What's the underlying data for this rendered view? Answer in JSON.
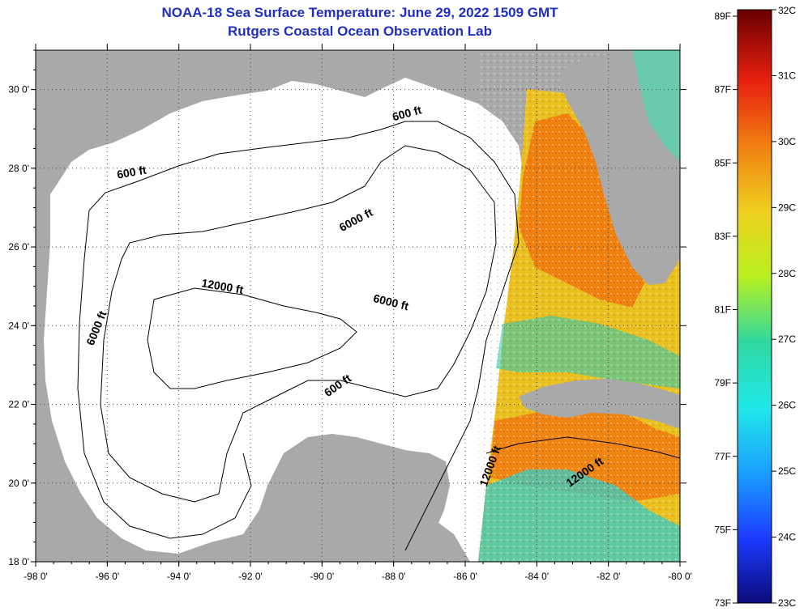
{
  "title": {
    "line1": "NOAA-18 Sea Surface Temperature:  June 29, 2022 1509 GMT",
    "line2": "Rutgers Coastal Ocean Observation Lab"
  },
  "map": {
    "lon_range": [
      -98,
      -80
    ],
    "lat_range": [
      18,
      31
    ],
    "x_ticks": [
      "-98 0'",
      "-96 0'",
      "-94 0'",
      "-92 0'",
      "-90 0'",
      "-88 0'",
      "-86 0'",
      "-84 0'",
      "-82 0'",
      "-80 0'"
    ],
    "y_ticks": [
      "30 0'",
      "28 0'",
      "26 0'",
      "24 0'",
      "22 0'",
      "20 0'",
      "18 0'"
    ],
    "contour_labels": [
      {
        "text": "600 ft",
        "lon": -95.3,
        "lat": 27.8,
        "rot": -10
      },
      {
        "text": "600 ft",
        "lon": -87.6,
        "lat": 29.3,
        "rot": -15
      },
      {
        "text": "6000 ft",
        "lon": -89.0,
        "lat": 26.6,
        "rot": -28
      },
      {
        "text": "12000 ft",
        "lon": -92.8,
        "lat": 24.9,
        "rot": 10
      },
      {
        "text": "6000 ft",
        "lon": -88.1,
        "lat": 24.5,
        "rot": 14
      },
      {
        "text": "6000 ft",
        "lon": -96.2,
        "lat": 23.9,
        "rot": -68
      },
      {
        "text": "600 ft",
        "lon": -89.5,
        "lat": 22.4,
        "rot": -35
      },
      {
        "text": "12000 ft",
        "lon": -85.2,
        "lat": 20.4,
        "rot": -70
      },
      {
        "text": "12000 ft",
        "lon": -82.6,
        "lat": 20.2,
        "rot": -35
      }
    ],
    "colors": {
      "land": "#a9a9a9",
      "ocean": "#ffffff",
      "grid": "#444444",
      "sst_warm": "#f07a10",
      "sst_mid": "#e8d820",
      "sst_cool": "#3ecbc0"
    }
  },
  "colorbar": {
    "f_labels": [
      "89F",
      "87F",
      "85F",
      "83F",
      "81F",
      "79F",
      "77F",
      "75F",
      "73F"
    ],
    "c_labels": [
      "32C",
      "31C",
      "30C",
      "29C",
      "28C",
      "27C",
      "26C",
      "25C",
      "24C",
      "23C"
    ],
    "range_c": [
      23,
      32
    ]
  }
}
